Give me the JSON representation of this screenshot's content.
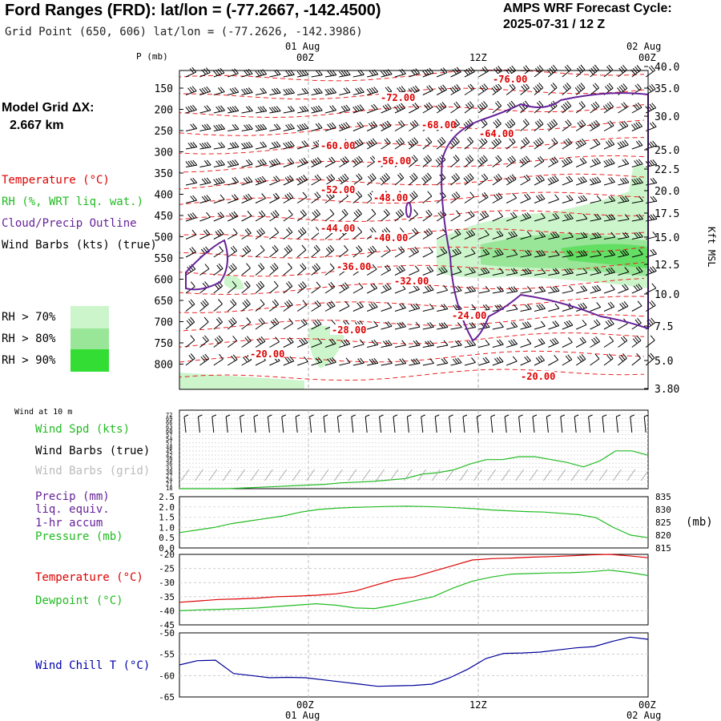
{
  "header": {
    "title": "Ford Ranges (FRD):  lat/lon = (-77.2667, -142.4500)",
    "subtitle": "Grid Point (650, 606) lat/lon = (-77.2626, -142.3986)",
    "cycle_line1": "AMPS WRF Forecast Cycle:",
    "cycle_line2": "2025-07-31 / 12  Z",
    "grid_line1": "Model Grid ΔX:",
    "grid_line2": "2.667 km"
  },
  "legend": {
    "temperature": "Temperature (°C)",
    "rh": "RH (%, WRT liq. wat.)",
    "cloud": "Cloud/Precip Outline",
    "wind": "Wind Barbs (kts) (true)",
    "rh70": "RH > 70%",
    "rh80": "RH > 80%",
    "rh90": "RH > 90%",
    "colors": {
      "temperature": "#dd0000",
      "rh": "#22bb22",
      "cloud": "#662299",
      "wind": "#000000",
      "rh70": "#ccf5cc",
      "rh80": "#99e699",
      "rh90": "#33dd33"
    }
  },
  "time_axis": {
    "top_day1": "01 Aug",
    "top_day2": "02 Aug",
    "ticks": [
      "00Z",
      "12Z",
      "00Z"
    ],
    "bottom_day1": "01 Aug",
    "bottom_day2": "02 Aug"
  },
  "chart_data": [
    {
      "type": "heatmap",
      "ylabel_left": "P (mb)",
      "ylabel_right": "Kft MSL",
      "pressure_ticks": [
        "150",
        "200",
        "250",
        "300",
        "350",
        "400",
        "450",
        "500",
        "550",
        "600",
        "650",
        "700",
        "750",
        "800"
      ],
      "height_ticks": [
        "40.0",
        "35.0",
        "30.0",
        "25.0",
        "22.5",
        "20.0",
        "17.5",
        "15.0",
        "12.5",
        "10.0",
        "7.5",
        "5.0",
        "3.80"
      ],
      "temperature_labels": [
        "-76.00",
        "-72.00",
        "-68.00",
        "-64.00",
        "-60.00",
        "-56.00",
        "-52.00",
        "-48.00",
        "-44.00",
        "-40.00",
        "-36.00",
        "-32.00",
        "-24.00",
        "-28.00",
        "-20.00",
        "-20.00"
      ]
    },
    {
      "type": "line",
      "label_small": "Wind at 10 m",
      "legend": [
        "Wind Spd (kts)",
        "Wind Barbs (true)",
        "Wind Barbs (grid)"
      ],
      "y_ticks": [
        "72",
        "69",
        "66",
        "63",
        "60",
        "57",
        "54",
        "51",
        "48",
        "45",
        "42",
        "39",
        "36",
        "33",
        "30",
        "27",
        "24",
        "21",
        "18"
      ],
      "series": [
        {
          "name": "Wind Spd (kts)",
          "values": [
            18,
            18,
            18,
            18,
            18.5,
            19,
            19.5,
            20,
            20.5,
            21,
            22,
            22.5,
            23,
            24,
            25,
            28,
            29,
            31,
            35,
            38,
            38,
            40,
            40,
            38,
            36,
            33,
            37,
            44,
            44,
            41
          ]
        }
      ]
    },
    {
      "type": "line",
      "legend": [
        "Precip (mm)",
        "liq. equiv.",
        "1-hr accum",
        "Pressure (mb)"
      ],
      "y_ticks_left": [
        "2.5",
        "2.0",
        "1.5",
        "1.0",
        "0.5",
        "0.0"
      ],
      "y_ticks_right": [
        "835",
        "830",
        "825",
        "820",
        "815"
      ],
      "right_unit": "(mb)",
      "series": [
        {
          "name": "Pressure (mb)",
          "values": [
            821,
            822,
            823,
            824.5,
            825.5,
            826.5,
            827.5,
            829,
            830,
            830.5,
            830.8,
            831,
            831.2,
            831.3,
            831.2,
            831,
            830.7,
            830.3,
            829.8,
            829.5,
            829.2,
            829,
            828.5,
            828,
            826.8,
            823,
            820,
            819
          ]
        }
      ]
    },
    {
      "type": "line",
      "legend": [
        "Temperature (°C)",
        "Dewpoint (°C)"
      ],
      "y_ticks": [
        "-20",
        "-25",
        "-30",
        "-35",
        "-40",
        "-45"
      ],
      "series": [
        {
          "name": "Temperature (°C)",
          "values": [
            -37,
            -36.5,
            -36,
            -35.8,
            -35.5,
            -35,
            -34.8,
            -34.5,
            -34,
            -33,
            -31,
            -29,
            -28,
            -26,
            -24,
            -22,
            -21.5,
            -21.3,
            -21,
            -20.8,
            -20.5,
            -20.2,
            -20,
            -20.5,
            -21.2
          ]
        },
        {
          "name": "Dewpoint (°C)",
          "values": [
            -40,
            -39.7,
            -39.5,
            -39.3,
            -39,
            -38.5,
            -38,
            -37.5,
            -38,
            -39,
            -39.2,
            -38,
            -36.5,
            -35,
            -32,
            -29.5,
            -28,
            -27,
            -26.8,
            -26.6,
            -26.5,
            -26.2,
            -25.6,
            -26.4,
            -27.5
          ]
        }
      ]
    },
    {
      "type": "line",
      "legend": [
        "Wind Chill T (°C)"
      ],
      "y_ticks": [
        "-50",
        "-55",
        "-60",
        "-65"
      ],
      "series": [
        {
          "name": "Wind Chill T (°C)",
          "values": [
            -57.5,
            -56.5,
            -56.4,
            -59.5,
            -60,
            -60.5,
            -60.4,
            -60.5,
            -61,
            -61.5,
            -62,
            -62.5,
            -62.4,
            -62.3,
            -62,
            -60.5,
            -58.5,
            -56,
            -54.8,
            -54.7,
            -54.5,
            -54,
            -53.5,
            -53.2,
            -52,
            -51,
            -51.5
          ]
        }
      ]
    }
  ]
}
